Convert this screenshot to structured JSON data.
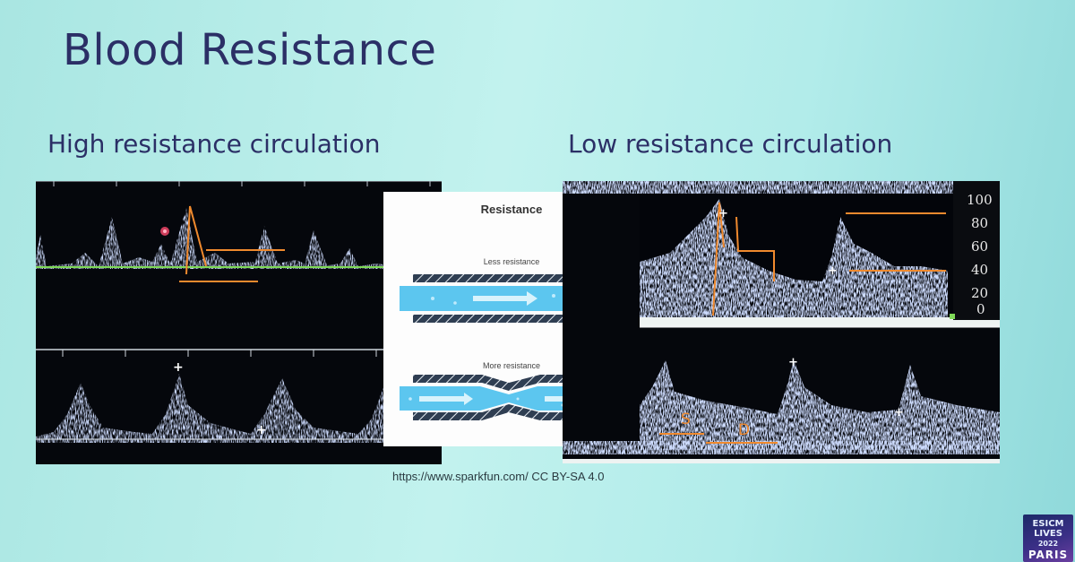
{
  "slide": {
    "title": "Blood Resistance",
    "left_heading": "High resistance circulation",
    "right_heading": "Low resistance circulation",
    "credit": "https://www.sparkfun.com/ CC BY-SA 4.0"
  },
  "diagram": {
    "title": "Resistance",
    "less_label": "Less resistance",
    "more_label": "More resistance"
  },
  "doppler_right": {
    "scale_labels": [
      "100",
      "80",
      "60",
      "40",
      "20",
      "0"
    ],
    "systolic_label": "S",
    "diastolic_label": "D"
  },
  "logo": {
    "line1": "ESICM",
    "line2": "LIVES",
    "line3": "2022",
    "city": "PARIS"
  },
  "colors": {
    "title": "#2b2f66",
    "annotation": "#f08a2e",
    "arrow": "#5cc6ef",
    "baseline_green": "#7ed957"
  }
}
